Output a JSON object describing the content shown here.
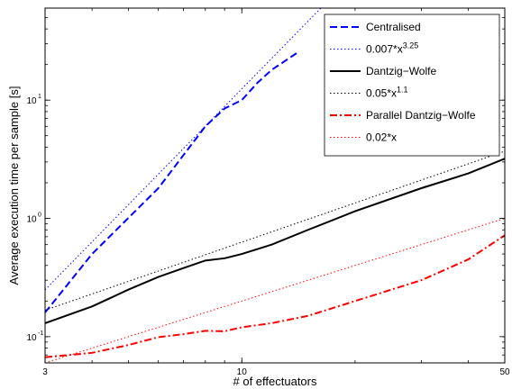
{
  "chart_data": {
    "type": "line",
    "xlabel": "# of effectuators",
    "ylabel": "Average execution time per sample [s]",
    "xscale": "log",
    "yscale": "log",
    "xlim": [
      3,
      50
    ],
    "ylim": [
      0.06,
      60
    ],
    "grid": false,
    "legend_position": "top-right",
    "x_ticks": [
      {
        "value": 3,
        "label": "3"
      },
      {
        "value": 10,
        "label": "10"
      },
      {
        "value": 50,
        "label": "50"
      }
    ],
    "y_ticks": [
      {
        "value": 0.1,
        "base": "10",
        "exp": "-1"
      },
      {
        "value": 1,
        "base": "10",
        "exp": "0"
      },
      {
        "value": 10,
        "base": "10",
        "exp": "1"
      }
    ],
    "series": [
      {
        "name": "Centralised",
        "color": "#0000ff",
        "style": "dashed",
        "x": [
          3,
          4,
          6,
          8,
          9,
          10,
          11,
          12,
          14
        ],
        "y": [
          0.16,
          0.5,
          1.8,
          6,
          8.5,
          10,
          14,
          18,
          25
        ]
      },
      {
        "name": "0.007*x",
        "name_sup": "3.25",
        "color": "#0000ff",
        "style": "dotted",
        "function": {
          "coef": 0.007,
          "exp": 3.25
        },
        "x_range": [
          3,
          50
        ]
      },
      {
        "name": "Dantzig−Wolfe",
        "color": "#000000",
        "style": "solid",
        "x": [
          3,
          4,
          5,
          6,
          7,
          8,
          9,
          10,
          12,
          15,
          20,
          30,
          40,
          50
        ],
        "y": [
          0.13,
          0.18,
          0.25,
          0.32,
          0.38,
          0.44,
          0.46,
          0.5,
          0.6,
          0.8,
          1.15,
          1.8,
          2.4,
          3.2
        ]
      },
      {
        "name": "0.05*x",
        "name_sup": "1.1",
        "color": "#000000",
        "style": "dotted",
        "function": {
          "coef": 0.05,
          "exp": 1.1
        },
        "x_range": [
          3,
          50
        ]
      },
      {
        "name": "Parallel Dantzig−Wolfe",
        "color": "#ff0000",
        "style": "dashdot",
        "x": [
          3,
          4,
          5,
          6,
          7,
          8,
          9,
          10,
          12,
          15,
          20,
          30,
          40,
          50
        ],
        "y": [
          0.067,
          0.073,
          0.085,
          0.099,
          0.105,
          0.112,
          0.111,
          0.12,
          0.13,
          0.15,
          0.2,
          0.3,
          0.45,
          0.72
        ]
      },
      {
        "name": "0.02*x",
        "name_sup": "",
        "color": "#ff0000",
        "style": "dotted",
        "function": {
          "coef": 0.02,
          "exp": 1
        },
        "x_range": [
          3,
          50
        ]
      }
    ]
  }
}
